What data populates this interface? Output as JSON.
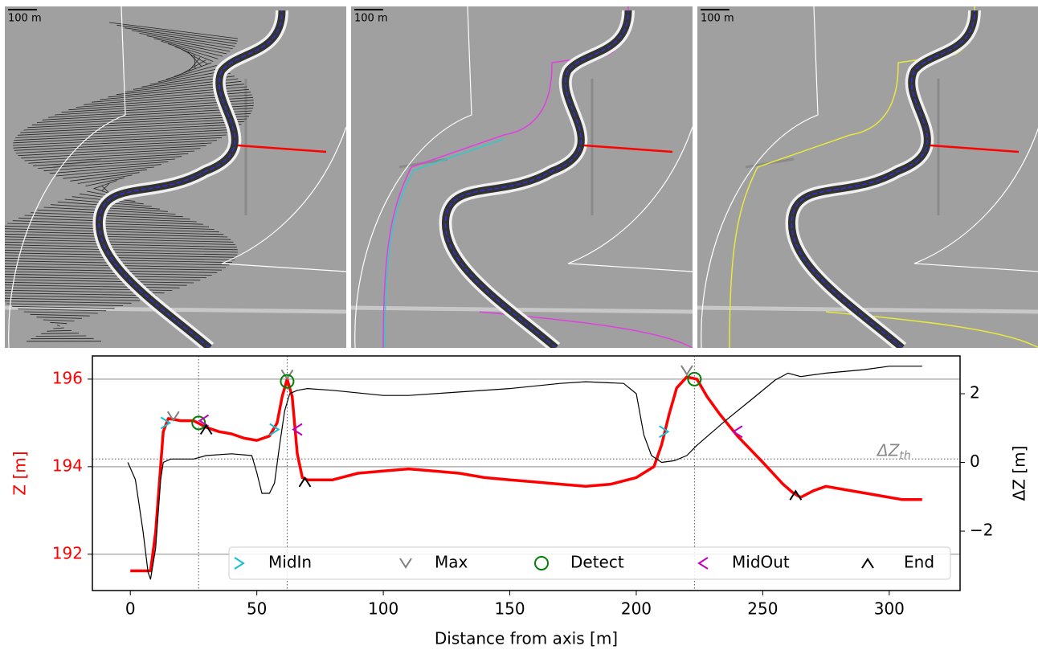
{
  "panels": [
    {
      "scale_label": "100 m"
    },
    {
      "scale_label": "100 m"
    },
    {
      "scale_label": "100 m"
    }
  ],
  "chart_data": {
    "type": "line",
    "xlabel": "Distance from axis [m]",
    "ylabel": "Z [m]",
    "y2label": "ΔZ [m]",
    "xlim": [
      -15,
      328
    ],
    "xticks": [
      0,
      50,
      100,
      150,
      200,
      250,
      300
    ],
    "ylim": [
      191.17,
      196.53
    ],
    "yticks": [
      192,
      194,
      196
    ],
    "y2lim": [
      -3.73,
      3.1
    ],
    "y2ticks": [
      {
        "value": -2,
        "label": "−2"
      },
      0,
      2
    ],
    "grid": true,
    "threshold": {
      "value": 0.1,
      "label": "ΔZ",
      "label_sub": "th"
    },
    "detect_lines": [
      27,
      62,
      223
    ],
    "series": [
      {
        "color": "#ff0000",
        "axis": "y",
        "x": [
          0,
          8,
          10,
          13,
          15,
          20,
          25,
          30,
          35,
          40,
          45,
          50,
          55,
          58,
          60,
          62,
          64,
          66,
          68,
          70,
          80,
          90,
          100,
          110,
          120,
          130,
          140,
          150,
          160,
          170,
          180,
          190,
          200,
          207,
          210,
          213,
          216,
          220,
          224,
          228,
          233,
          240,
          250,
          258,
          262,
          265,
          270,
          275,
          280,
          290,
          300,
          305,
          313
        ],
        "values": [
          191.62,
          191.62,
          192.5,
          194.8,
          195.1,
          195.05,
          195.05,
          194.9,
          194.8,
          194.75,
          194.65,
          194.6,
          194.7,
          195.0,
          195.6,
          196.0,
          195.6,
          194.3,
          193.75,
          193.7,
          193.7,
          193.85,
          193.9,
          193.95,
          193.9,
          193.85,
          193.75,
          193.7,
          193.65,
          193.6,
          193.55,
          193.6,
          193.75,
          194.0,
          194.5,
          195.2,
          195.8,
          196.05,
          196.0,
          195.6,
          195.2,
          194.7,
          194.1,
          193.6,
          193.4,
          193.3,
          193.45,
          193.55,
          193.5,
          193.4,
          193.3,
          193.25,
          193.25
        ]
      },
      {
        "color": "#000000",
        "axis": "y2",
        "x": [
          -1,
          2,
          5,
          7,
          8,
          10,
          12,
          13,
          16,
          25,
          30,
          40,
          48,
          50,
          52,
          55,
          57,
          59,
          61,
          63,
          66,
          70,
          80,
          100,
          110,
          130,
          150,
          170,
          180,
          195,
          200,
          203,
          206,
          210,
          215,
          220,
          224,
          235,
          245,
          255,
          260,
          265,
          275,
          290,
          300,
          313
        ],
        "values": [
          0.0,
          -0.5,
          -2,
          -3.2,
          -3.4,
          -2.5,
          -0.5,
          0.0,
          0.1,
          0.1,
          0.2,
          0.25,
          0.2,
          -0.3,
          -0.9,
          -0.9,
          -0.6,
          0.5,
          1.5,
          2.0,
          2.1,
          2.15,
          2.1,
          1.95,
          1.95,
          2.05,
          2.15,
          2.3,
          2.35,
          2.3,
          2.0,
          0.8,
          0.2,
          0.0,
          0.05,
          0.2,
          0.5,
          1.2,
          1.8,
          2.4,
          2.6,
          2.5,
          2.6,
          2.7,
          2.8,
          2.8
        ]
      }
    ],
    "markers": [
      {
        "name": "MidIn",
        "color": "#17becf",
        "marker": ">",
        "x": [
          14,
          57,
          211
        ],
        "values": [
          195.0,
          194.85,
          194.8
        ]
      },
      {
        "name": "Max",
        "color": "#808080",
        "marker": "v",
        "x": [
          17,
          62,
          220
        ],
        "values": [
          195.15,
          196.1,
          196.2
        ]
      },
      {
        "name": "Detect",
        "color": "#008000",
        "marker": "o",
        "x": [
          27,
          62,
          223
        ],
        "values": [
          195.0,
          195.95,
          196.0
        ]
      },
      {
        "name": "MidOut",
        "color": "#bf00bf",
        "marker": "<",
        "x": [
          29,
          66,
          240
        ],
        "values": [
          195.05,
          194.85,
          194.8
        ]
      },
      {
        "name": "End",
        "color": "#000000",
        "marker": "^",
        "x": [
          30,
          69,
          263
        ],
        "values": [
          194.85,
          193.65,
          193.35
        ]
      }
    ]
  }
}
